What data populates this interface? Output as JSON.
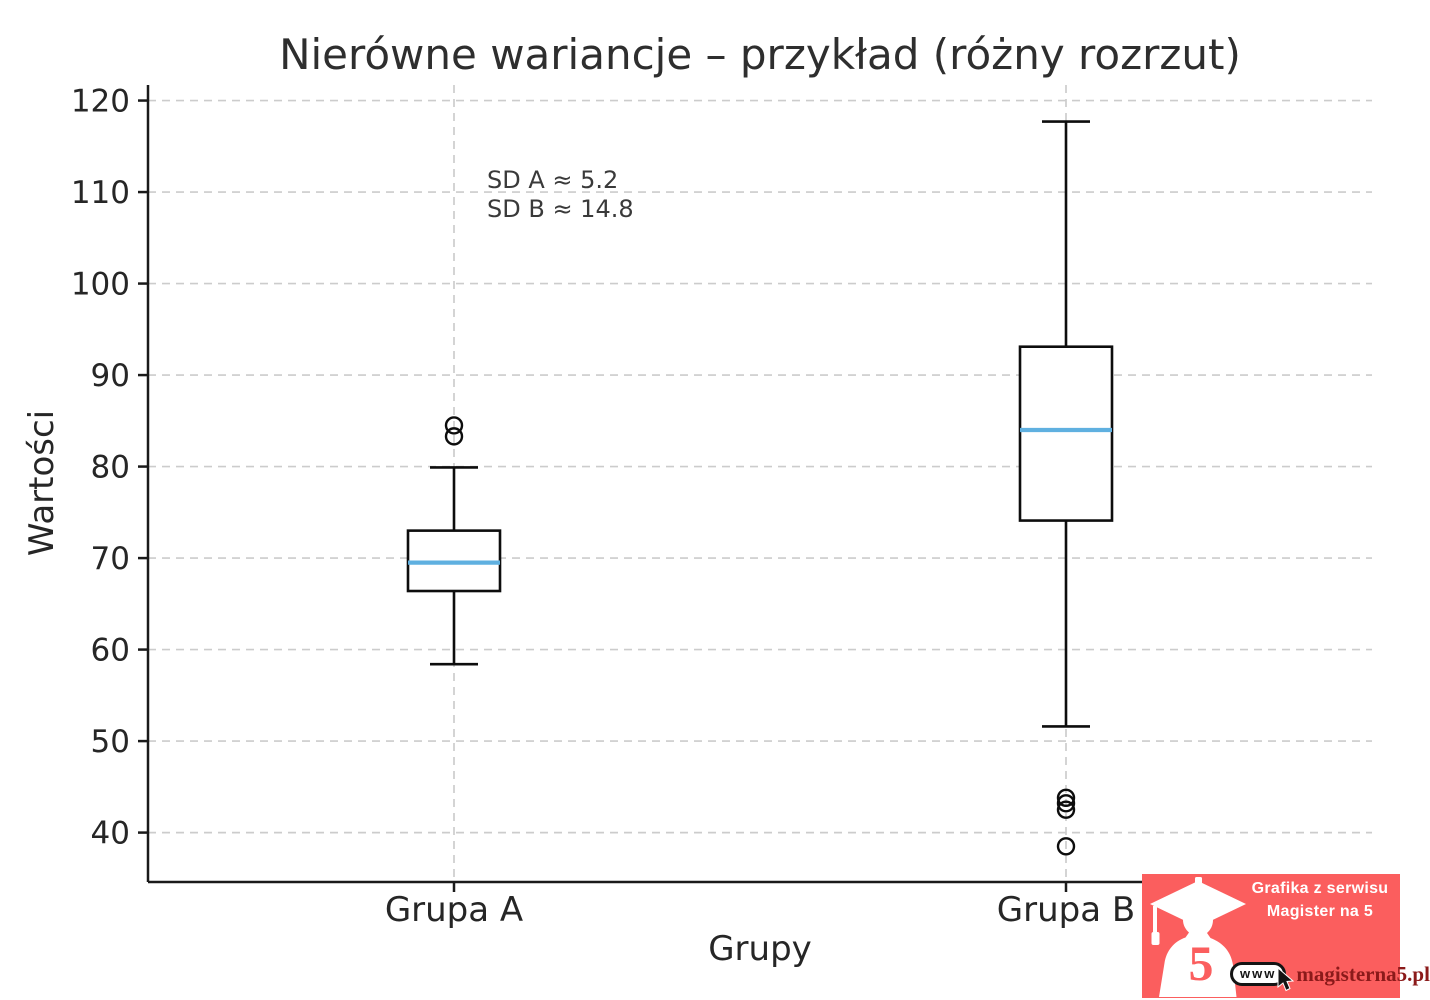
{
  "chart_data": {
    "type": "boxplot",
    "title": "Nierówne wariancje – przykład (różny rozrzut)",
    "xlabel": "Grupy",
    "ylabel": "Wartości",
    "categories": [
      "Grupa A",
      "Grupa B"
    ],
    "yticks": [
      40,
      50,
      60,
      70,
      80,
      90,
      100,
      110,
      120
    ],
    "ylim": [
      34.6,
      121.7
    ],
    "grid": true,
    "series": [
      {
        "name": "Grupa A",
        "whisker_low": 58.4,
        "q1": 66.4,
        "median": 69.5,
        "q3": 73.0,
        "whisker_high": 79.9,
        "outliers": [
          83.3,
          84.5
        ]
      },
      {
        "name": "Grupa B",
        "whisker_low": 51.6,
        "q1": 74.1,
        "median": 84.0,
        "q3": 93.1,
        "whisker_high": 117.7,
        "outliers": [
          38.5,
          42.5,
          43.2,
          43.8
        ]
      }
    ],
    "annotations": [
      "SD A ≈ 5.2",
      "SD B ≈ 14.8"
    ],
    "colors": {
      "median": "#5FB0E0",
      "box": "#0d0d0d",
      "grid": "#cccccc",
      "text": "#262626"
    }
  },
  "watermark": {
    "line1": "Grafika z serwisu",
    "line2": "Magister na 5",
    "www": "www",
    "site": "magisterna5.pl",
    "five": "5",
    "bg_color": "#FB5E5E",
    "site_color": "#8B1A1A"
  }
}
